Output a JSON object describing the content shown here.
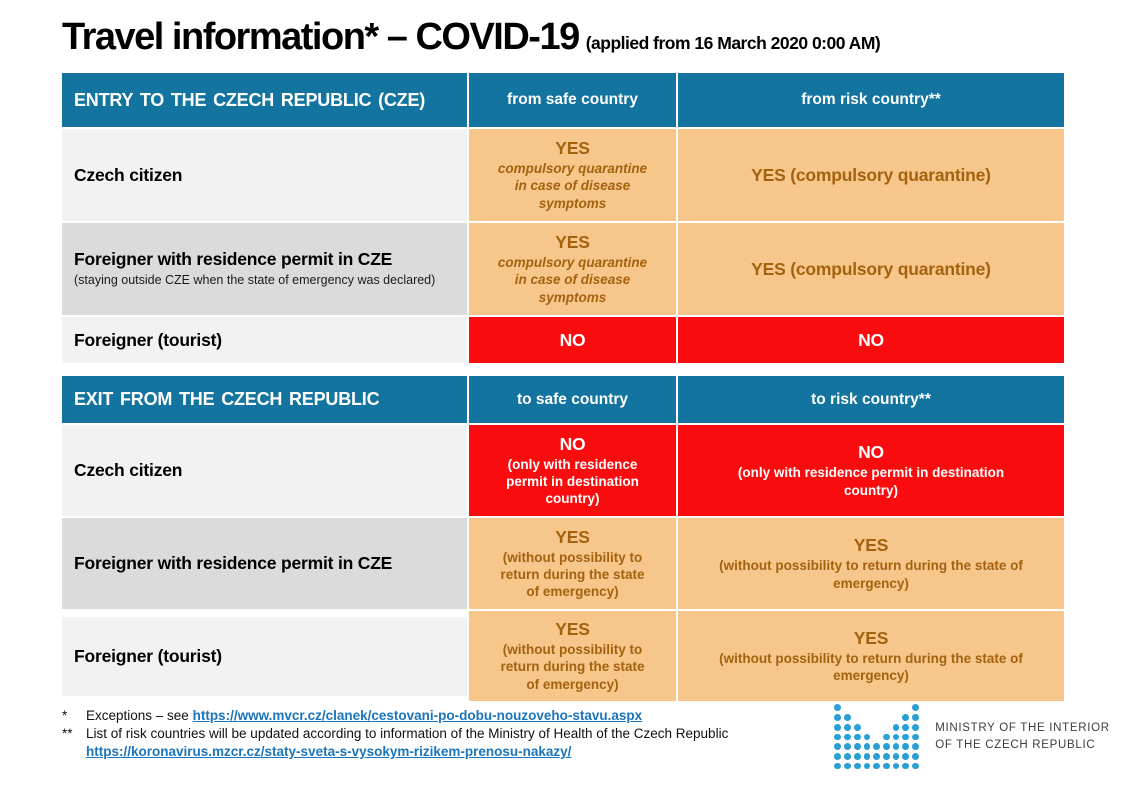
{
  "title": {
    "main": "Travel information* – COVID-19",
    "note": "(applied from 16 March 2020 0:00 AM)"
  },
  "entry_table": {
    "header": {
      "title": "ENTRY TO THE CZECH REPUBLIC (CZE)",
      "safe": "from safe country",
      "risk": "from risk country**"
    },
    "rows": [
      {
        "label": "Czech citizen",
        "sublabel": "",
        "safe": {
          "verdict": "YES",
          "detail": "compulsory quarantine in case of disease symptoms"
        },
        "risk": {
          "verdict": "YES (compulsory quarantine)",
          "detail": ""
        }
      },
      {
        "label": "Foreigner with residence permit in CZE",
        "sublabel": "(staying outside CZE when the state of emergency was declared)",
        "safe": {
          "verdict": "YES",
          "detail": "compulsory quarantine in case of disease symptoms"
        },
        "risk": {
          "verdict": "YES (compulsory quarantine)",
          "detail": ""
        }
      },
      {
        "label": "Foreigner (tourist)",
        "sublabel": "",
        "safe": {
          "verdict": "NO",
          "detail": ""
        },
        "risk": {
          "verdict": "NO",
          "detail": ""
        }
      }
    ]
  },
  "exit_table": {
    "header": {
      "title": "EXIT FROM THE CZECH REPUBLIC",
      "safe": "to safe country",
      "risk": "to risk country**"
    },
    "rows": [
      {
        "label": "Czech citizen",
        "safe": {
          "verdict": "NO",
          "detail": "(only with residence permit in destination country)"
        },
        "risk": {
          "verdict": "NO",
          "detail": "(only with residence permit in destination country)"
        }
      },
      {
        "label": "Foreigner with residence permit in CZE",
        "safe": {
          "verdict": "YES",
          "detail": "(without possibility to return during the state of emergency)"
        },
        "risk": {
          "verdict": "YES",
          "detail": "(without possibility to return during the state of emergency)"
        }
      },
      {
        "label": "Foreigner (tourist)",
        "safe": {
          "verdict": "YES",
          "detail": "(without possibility to return during the state of emergency)"
        },
        "risk": {
          "verdict": "YES",
          "detail": "(without possibility to return during the state of emergency)"
        }
      }
    ]
  },
  "footnotes": {
    "f1_marker": "*",
    "f1_text": "Exceptions – see",
    "f1_link": "https://www.mvcr.cz/clanek/cestovani-po-dobu-nouzoveho-stavu.aspx",
    "f2_marker": "**",
    "f2_text": "List of risk countries will be updated according to information of the Ministry of Health of the Czech Republic",
    "f2_link": "https://koronavirus.mzcr.cz/staty-sveta-s-vysokym-rizikem-prenosu-nakazy/"
  },
  "logo": {
    "line1": "MINISTRY OF THE INTERIOR",
    "line2": "OF THE CZECH REPUBLIC",
    "dot_color": "#2B9FD3",
    "dot_rows": [
      "100000001",
      "110000011",
      "111000111",
      "111101111",
      "111111111",
      "111111111",
      "111111111"
    ]
  },
  "colors": {
    "header_blue": "#12749F",
    "orange_bg": "#F7C68A",
    "orange_text": "#A4620F",
    "red_bg": "#FA0B0D",
    "row_light": "#F2F2F2",
    "row_dark": "#DBDBDB",
    "link_blue": "#1B75BC"
  }
}
